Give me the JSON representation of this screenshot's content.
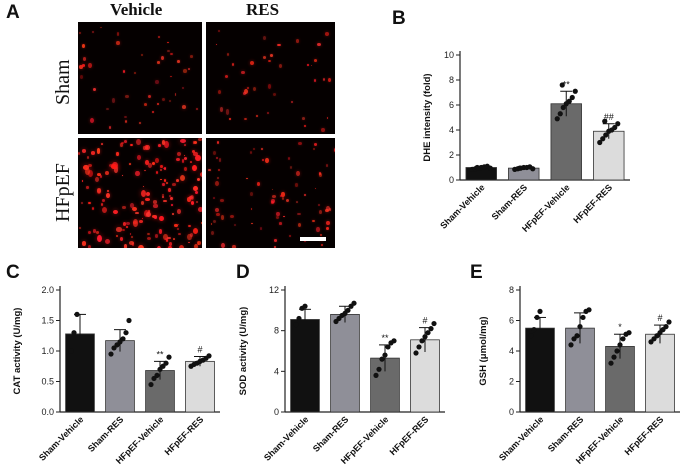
{
  "panel_labels": {
    "A": "A",
    "B": "B",
    "C": "C",
    "D": "D",
    "E": "E"
  },
  "micrographs": {
    "columns": [
      "Vehicle",
      "RES"
    ],
    "rows": [
      "Sham",
      "HFpEF"
    ]
  },
  "colors": {
    "Sham-Vehicle": "#111111",
    "Sham-RES": "#8f8f98",
    "HFpEF-Vehicle": "#6a6a6a",
    "HFpEF-RES": "#dcdcdc",
    "stain": "#ff2020"
  },
  "chart_data": [
    {
      "id": "B",
      "type": "bar",
      "categories": [
        "Sham-Vehicle",
        "Sham-RES",
        "HFpEF-Vehicle",
        "HFpEF-RES"
      ],
      "values": [
        1.0,
        0.95,
        6.1,
        3.9
      ],
      "errors": [
        0.1,
        0.1,
        1.0,
        0.6
      ],
      "annotations": [
        "",
        "",
        "**",
        "##"
      ],
      "points": [
        [
          0.85,
          0.9,
          0.95,
          1.0,
          1.05,
          1.1,
          0.95,
          1.0
        ],
        [
          0.85,
          0.9,
          0.95,
          1.0,
          1.0,
          1.05,
          0.9,
          0.95
        ],
        [
          4.9,
          5.3,
          5.8,
          6.1,
          6.3,
          6.6,
          7.1,
          7.6
        ],
        [
          3.0,
          3.3,
          3.6,
          3.9,
          4.0,
          4.2,
          4.5,
          4.7
        ]
      ],
      "ylabel": "DHE intensity (fold)",
      "ylim": [
        0,
        10
      ],
      "yticks": [
        0,
        2,
        4,
        6,
        8,
        10
      ]
    },
    {
      "id": "C",
      "type": "bar",
      "categories": [
        "Sham-Vehicle",
        "Sham-RES",
        "HFpEF-Vehicle",
        "HFpEF-RES"
      ],
      "values": [
        1.28,
        1.17,
        0.68,
        0.83
      ],
      "errors": [
        0.32,
        0.18,
        0.15,
        0.08
      ],
      "annotations": [
        "",
        "",
        "**",
        "#"
      ],
      "points": [
        [
          1.0,
          1.3,
          1.6
        ],
        [
          0.95,
          1.05,
          1.1,
          1.15,
          1.2,
          1.3,
          1.5
        ],
        [
          0.45,
          0.55,
          0.6,
          0.7,
          0.75,
          0.8,
          0.9
        ],
        [
          0.75,
          0.78,
          0.8,
          0.83,
          0.85,
          0.88,
          0.92
        ]
      ],
      "ylabel": "CAT activity (U/mg)",
      "ylim": [
        0.0,
        2.0
      ],
      "yticks": [
        "0.0",
        "0.5",
        "1.0",
        "1.5",
        "2.0"
      ]
    },
    {
      "id": "D",
      "type": "bar",
      "categories": [
        "Sham-Vehicle",
        "Sham-RES",
        "HFpEF-Vehicle",
        "HFpEF-RES"
      ],
      "values": [
        9.1,
        9.6,
        5.3,
        7.1
      ],
      "errors": [
        1.0,
        0.8,
        1.3,
        1.2
      ],
      "annotations": [
        "",
        "",
        "**",
        "#"
      ],
      "points": [
        [
          8.6,
          9.2,
          10.2,
          10.4
        ],
        [
          8.9,
          9.2,
          9.5,
          9.7,
          10.0,
          10.4,
          10.7
        ],
        [
          3.6,
          4.2,
          5.2,
          5.6,
          6.4,
          6.8,
          7.0
        ],
        [
          5.8,
          6.4,
          7.0,
          7.4,
          7.8,
          8.2,
          8.7
        ]
      ],
      "ylabel": "SOD activity (U/mg)",
      "ylim": [
        0,
        12
      ],
      "yticks": [
        0,
        4,
        8,
        12
      ]
    },
    {
      "id": "E",
      "type": "bar",
      "categories": [
        "Sham-Vehicle",
        "Sham-RES",
        "HFpEF-Vehicle",
        "HFpEF-RES"
      ],
      "values": [
        5.5,
        5.5,
        4.3,
        5.1
      ],
      "errors": [
        0.7,
        1.0,
        0.8,
        0.6
      ],
      "annotations": [
        "",
        "",
        "*",
        "#"
      ],
      "points": [
        [
          5.0,
          5.4,
          6.2,
          6.6
        ],
        [
          4.4,
          4.8,
          5.0,
          5.6,
          6.2,
          6.6,
          6.7
        ],
        [
          3.2,
          3.6,
          4.0,
          4.4,
          4.8,
          5.1,
          5.2
        ],
        [
          4.6,
          4.8,
          5.0,
          5.2,
          5.4,
          5.6,
          5.9
        ]
      ],
      "ylabel": "GSH (μmol/mg)",
      "ylim": [
        0,
        8
      ],
      "yticks": [
        0,
        2,
        4,
        6,
        8
      ]
    }
  ]
}
